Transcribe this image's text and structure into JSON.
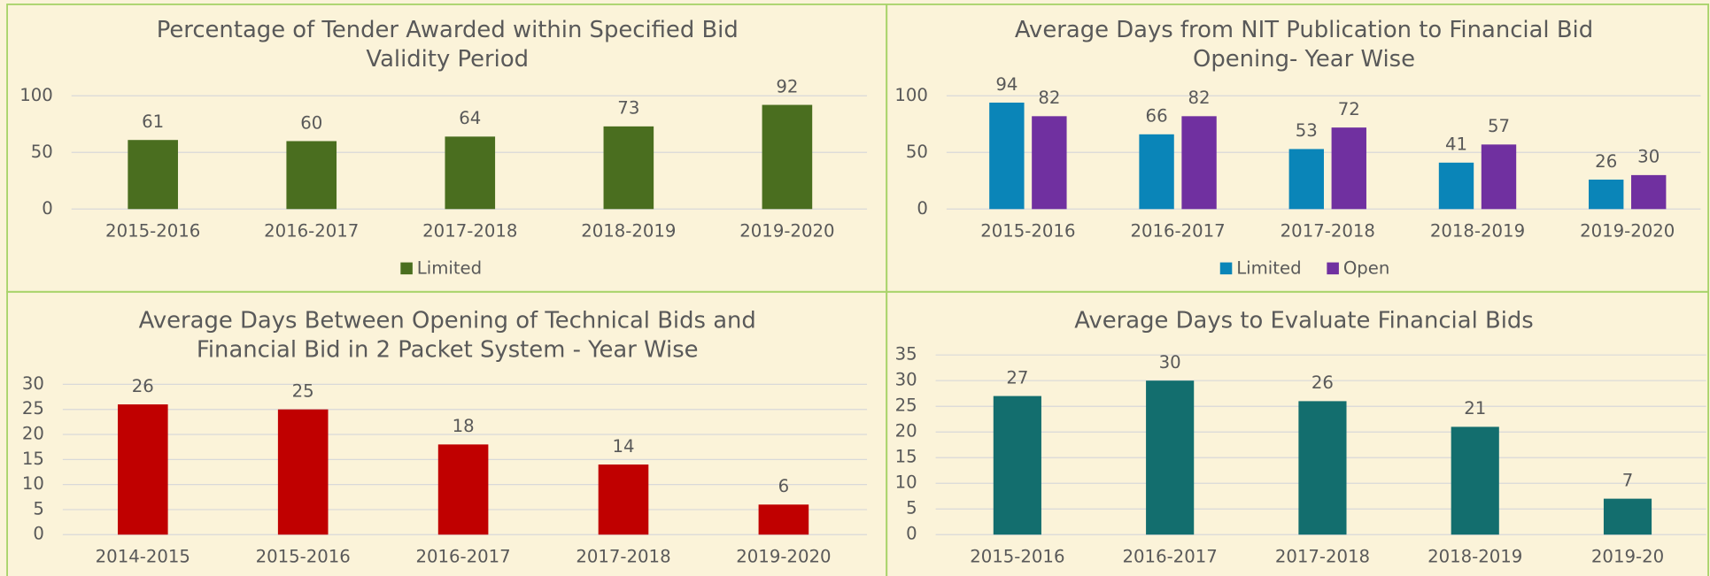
{
  "chart_data": [
    {
      "type": "bar",
      "title": "Percentage of Tender Awarded within Specified Bid Validity Period",
      "categories": [
        "2015-2016",
        "2016-2017",
        "2017-2018",
        "2018-2019",
        "2019-2020"
      ],
      "series": [
        {
          "name": "Limited",
          "color": "#4a6e1f",
          "values": [
            61,
            60,
            64,
            73,
            92
          ]
        }
      ],
      "ylim": [
        0,
        100
      ],
      "yticks": [
        0,
        50,
        100
      ],
      "grid": true,
      "legend": "bottom"
    },
    {
      "type": "bar",
      "title": "Average Days from NIT Publication to Financial Bid Opening- Year Wise",
      "categories": [
        "2015-2016",
        "2016-2017",
        "2017-2018",
        "2018-2019",
        "2019-2020"
      ],
      "series": [
        {
          "name": "Limited",
          "color": "#0a85b8",
          "values": [
            94,
            66,
            53,
            41,
            26
          ]
        },
        {
          "name": "Open",
          "color": "#7030a0",
          "values": [
            82,
            82,
            72,
            57,
            30
          ]
        }
      ],
      "ylim": [
        0,
        100
      ],
      "yticks": [
        0,
        50,
        100
      ],
      "grid": true,
      "legend": "bottom"
    },
    {
      "type": "bar",
      "title": "Average Days Between Opening of Technical Bids and Financial Bid in 2 Packet System - Year Wise",
      "categories": [
        "2014-2015",
        "2015-2016",
        "2016-2017",
        "2017-2018",
        "2019-2020"
      ],
      "values": [
        26,
        25,
        18,
        14,
        6
      ],
      "color": "#c00000",
      "ylim": [
        0,
        30
      ],
      "yticks": [
        0,
        5,
        10,
        15,
        20,
        25,
        30
      ],
      "grid": true
    },
    {
      "type": "bar",
      "title": "Average Days to Evaluate Financial Bids",
      "categories": [
        "2015-2016",
        "2016-2017",
        "2017-2018",
        "2018-2019",
        "2019-20"
      ],
      "values": [
        27,
        30,
        26,
        21,
        7
      ],
      "color": "#136e6e",
      "ylim": [
        0,
        35
      ],
      "yticks": [
        0,
        5,
        10,
        15,
        20,
        25,
        30,
        35
      ],
      "grid": true
    }
  ]
}
